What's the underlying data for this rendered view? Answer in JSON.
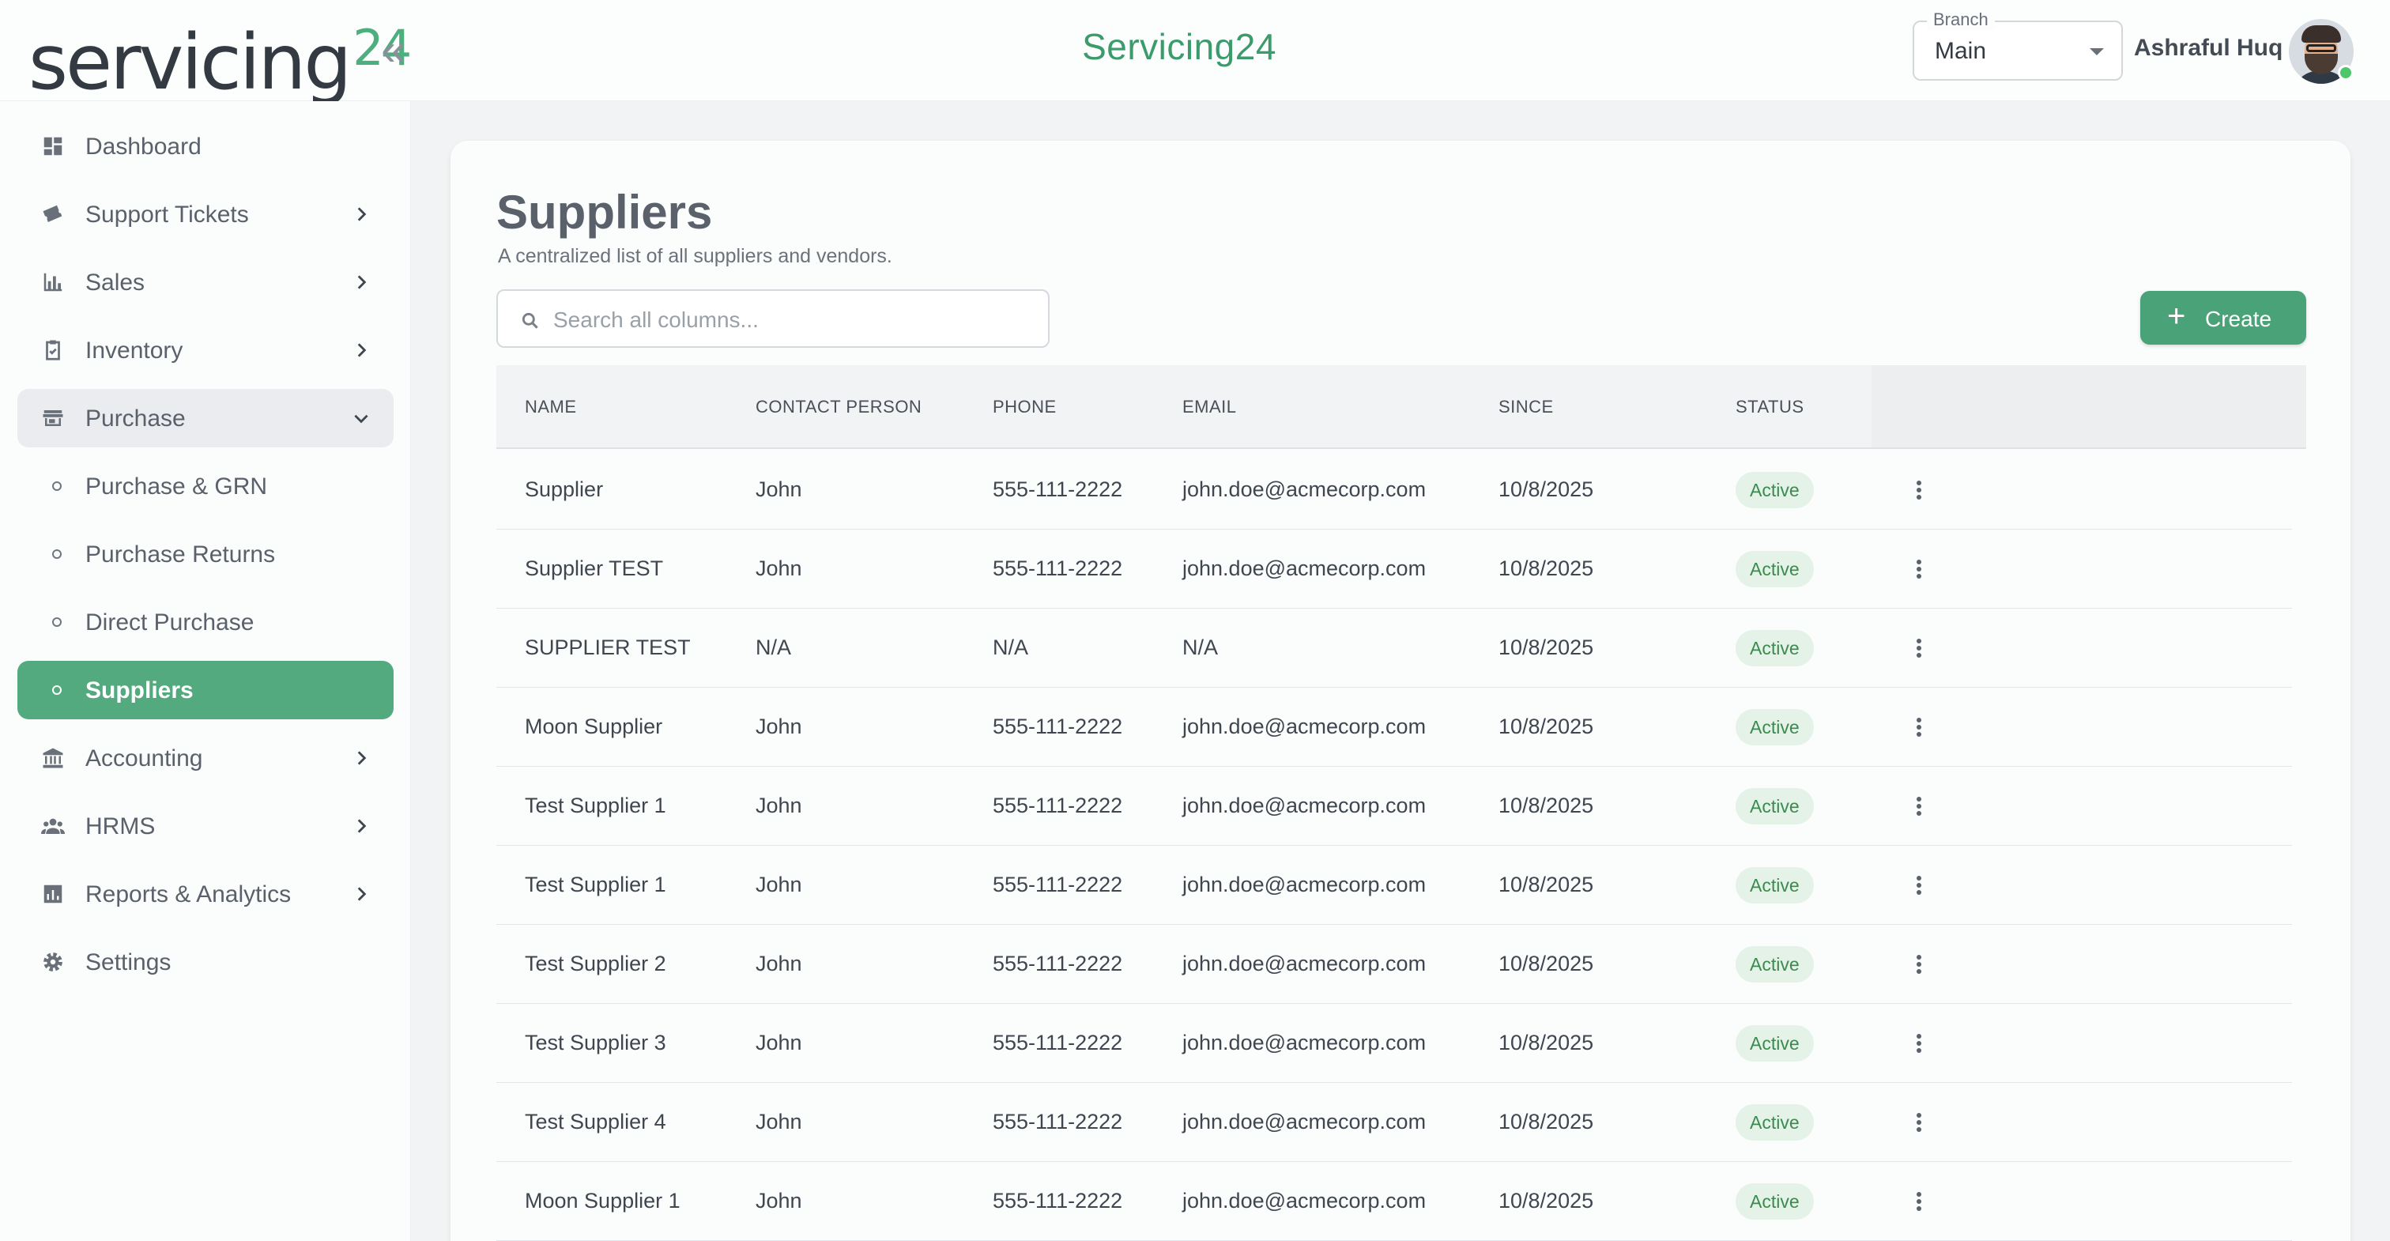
{
  "header": {
    "logo_text": "servicing",
    "logo_number": "24",
    "app_title": "Servicing24",
    "branch": {
      "legend": "Branch",
      "value": "Main"
    },
    "user_name": "Ashraful Huq"
  },
  "sidebar": {
    "items": [
      {
        "label": "Dashboard",
        "icon": "dashboard-icon"
      },
      {
        "label": "Support Tickets",
        "icon": "ticket-icon"
      },
      {
        "label": "Sales",
        "icon": "bar-chart-icon"
      },
      {
        "label": "Inventory",
        "icon": "clipboard-check-icon"
      },
      {
        "label": "Purchase",
        "icon": "store-icon",
        "expanded": true
      },
      {
        "label": "Purchase & GRN",
        "sub": true
      },
      {
        "label": "Purchase Returns",
        "sub": true
      },
      {
        "label": "Direct Purchase",
        "sub": true
      },
      {
        "label": "Suppliers",
        "sub": true,
        "active": true
      },
      {
        "label": "Accounting",
        "icon": "bank-icon"
      },
      {
        "label": "HRMS",
        "icon": "people-icon"
      },
      {
        "label": "Reports & Analytics",
        "icon": "analytics-icon"
      },
      {
        "label": "Settings",
        "icon": "gear-icon"
      }
    ]
  },
  "main": {
    "title": "Suppliers",
    "subtitle": "A centralized list of all suppliers and vendors.",
    "search_placeholder": "Search all columns...",
    "create_label": "Create",
    "columns": [
      "NAME",
      "CONTACT PERSON",
      "PHONE",
      "EMAIL",
      "SINCE",
      "STATUS"
    ],
    "rows": [
      [
        "Supplier",
        "John",
        "555-111-2222",
        "john.doe@acmecorp.com",
        "10/8/2025",
        "Active"
      ],
      [
        "Supplier TEST",
        "John",
        "555-111-2222",
        "john.doe@acmecorp.com",
        "10/8/2025",
        "Active"
      ],
      [
        "SUPPLIER TEST",
        "N/A",
        "N/A",
        "N/A",
        "10/8/2025",
        "Active"
      ],
      [
        "Moon Supplier",
        "John",
        "555-111-2222",
        "john.doe@acmecorp.com",
        "10/8/2025",
        "Active"
      ],
      [
        "Test Supplier 1",
        "John",
        "555-111-2222",
        "john.doe@acmecorp.com",
        "10/8/2025",
        "Active"
      ],
      [
        "Test Supplier 1",
        "John",
        "555-111-2222",
        "john.doe@acmecorp.com",
        "10/8/2025",
        "Active"
      ],
      [
        "Test Supplier 2",
        "John",
        "555-111-2222",
        "john.doe@acmecorp.com",
        "10/8/2025",
        "Active"
      ],
      [
        "Test Supplier 3",
        "John",
        "555-111-2222",
        "john.doe@acmecorp.com",
        "10/8/2025",
        "Active"
      ],
      [
        "Test Supplier 4",
        "John",
        "555-111-2222",
        "john.doe@acmecorp.com",
        "10/8/2025",
        "Active"
      ],
      [
        "Moon Supplier 1",
        "John",
        "555-111-2222",
        "john.doe@acmecorp.com",
        "10/8/2025",
        "Active"
      ]
    ]
  },
  "colors": {
    "accent": "#52aa7e",
    "title_green": "#3c9b6c",
    "badge_bg": "#e4f2e7",
    "badge_text": "#3c8a4f"
  }
}
